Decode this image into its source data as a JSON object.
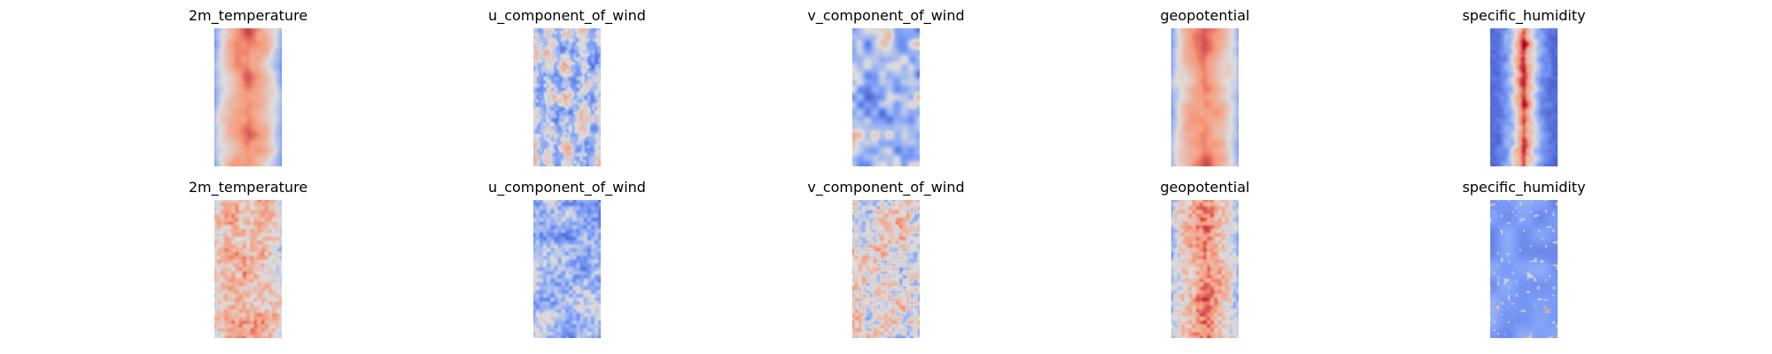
{
  "figure": {
    "rows": [
      {
        "panels": [
          {
            "title": "2m_temperature",
            "colormap": "coolwarm",
            "pattern": "warm-core"
          },
          {
            "title": "u_component_of_wind",
            "colormap": "coolwarm",
            "pattern": "streaky"
          },
          {
            "title": "v_component_of_wind",
            "colormap": "coolwarm",
            "pattern": "swirly-cool"
          },
          {
            "title": "geopotential",
            "colormap": "coolwarm",
            "pattern": "warm-core"
          },
          {
            "title": "specific_humidity",
            "colormap": "coolwarm",
            "pattern": "humid-spine"
          }
        ]
      },
      {
        "panels": [
          {
            "title": "2m_temperature",
            "colormap": "coolwarm",
            "pattern": "warm-noisy"
          },
          {
            "title": "u_component_of_wind",
            "colormap": "coolwarm",
            "pattern": "cool-noisy"
          },
          {
            "title": "v_component_of_wind",
            "colormap": "coolwarm",
            "pattern": "mixed-noisy"
          },
          {
            "title": "geopotential",
            "colormap": "coolwarm",
            "pattern": "warm-core-noisy"
          },
          {
            "title": "specific_humidity",
            "colormap": "coolwarm",
            "pattern": "cool-speckled"
          }
        ]
      }
    ]
  }
}
